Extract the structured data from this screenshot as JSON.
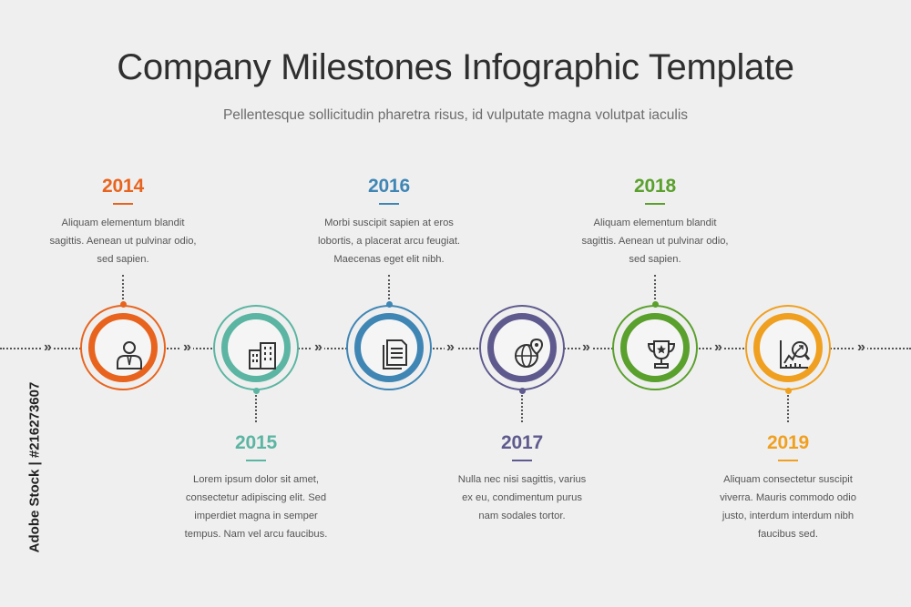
{
  "title": "Company Milestones Infographic Template",
  "subtitle": "Pellentesque sollicitudin pharetra risus, id vulputate magna volutpat iaculis",
  "side_text": "Adobe Stock | #216273607",
  "milestones": [
    {
      "year": "2014",
      "color": "#e8641e",
      "icon": "person-icon",
      "position": "top",
      "lines": [
        "Aliquam elementum blandit",
        "sagittis. Aenean ut pulvinar odio,",
        "sed sapien."
      ]
    },
    {
      "year": "2015",
      "color": "#5bb5a2",
      "icon": "buildings-icon",
      "position": "bottom",
      "lines": [
        "Lorem ipsum dolor sit amet,",
        "consectetur adipiscing elit. Sed",
        "imperdiet magna in semper",
        "tempus. Nam vel arcu faucibus."
      ]
    },
    {
      "year": "2016",
      "color": "#3f86b5",
      "icon": "documents-icon",
      "position": "top",
      "lines": [
        "Morbi suscipit sapien at eros",
        "lobortis, a placerat arcu feugiat.",
        "Maecenas eget elit nibh."
      ]
    },
    {
      "year": "2017",
      "color": "#5e5a8e",
      "icon": "globe-pin-icon",
      "position": "bottom",
      "lines": [
        "Nulla nec nisi sagittis, varius",
        "ex eu, condimentum purus",
        "nam sodales tortor."
      ]
    },
    {
      "year": "2018",
      "color": "#5aa02c",
      "icon": "trophy-icon",
      "position": "top",
      "lines": [
        "Aliquam elementum blandit",
        "sagittis. Aenean ut pulvinar odio,",
        "sed sapien."
      ]
    },
    {
      "year": "2019",
      "color": "#f0a020",
      "icon": "chart-magnifier-icon",
      "position": "bottom",
      "lines": [
        "Aliquam consectetur suscipit",
        "viverra. Mauris commodo odio",
        "justo, interdum interdum nibh",
        "faucibus sed."
      ]
    }
  ],
  "chevron": "»"
}
